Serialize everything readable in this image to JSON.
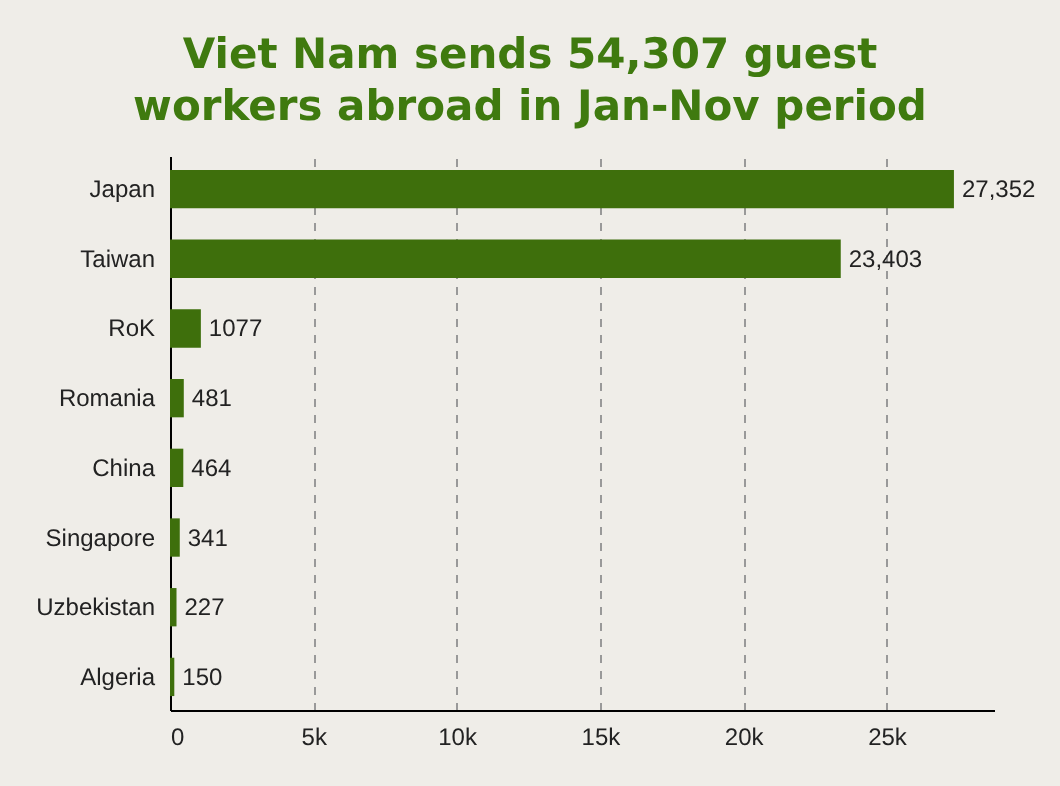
{
  "chart_data": {
    "type": "bar",
    "orientation": "horizontal",
    "title": "Viet Nam sends 54,307 guest workers abroad in Jan-Nov period",
    "categories": [
      "Japan",
      "Taiwan",
      "RoK",
      "Romania",
      "China",
      "Singapore",
      "Uzbekistan",
      "Algeria"
    ],
    "values": [
      27352,
      23403,
      1077,
      481,
      464,
      341,
      227,
      150
    ],
    "value_labels": [
      "27,352",
      "23,403",
      "1077",
      "481",
      "464",
      "341",
      "227",
      "150"
    ],
    "color": "#3e6f0c",
    "xlim": [
      0,
      28750
    ],
    "xticks": [
      0,
      {
        "value": 5000,
        "label": "5k"
      },
      {
        "value": 10000,
        "label": "10k"
      },
      {
        "value": 15000,
        "label": "15k"
      },
      {
        "value": 20000,
        "label": "20k"
      },
      {
        "value": 25000,
        "label": "25k"
      }
    ],
    "grid": "x"
  }
}
